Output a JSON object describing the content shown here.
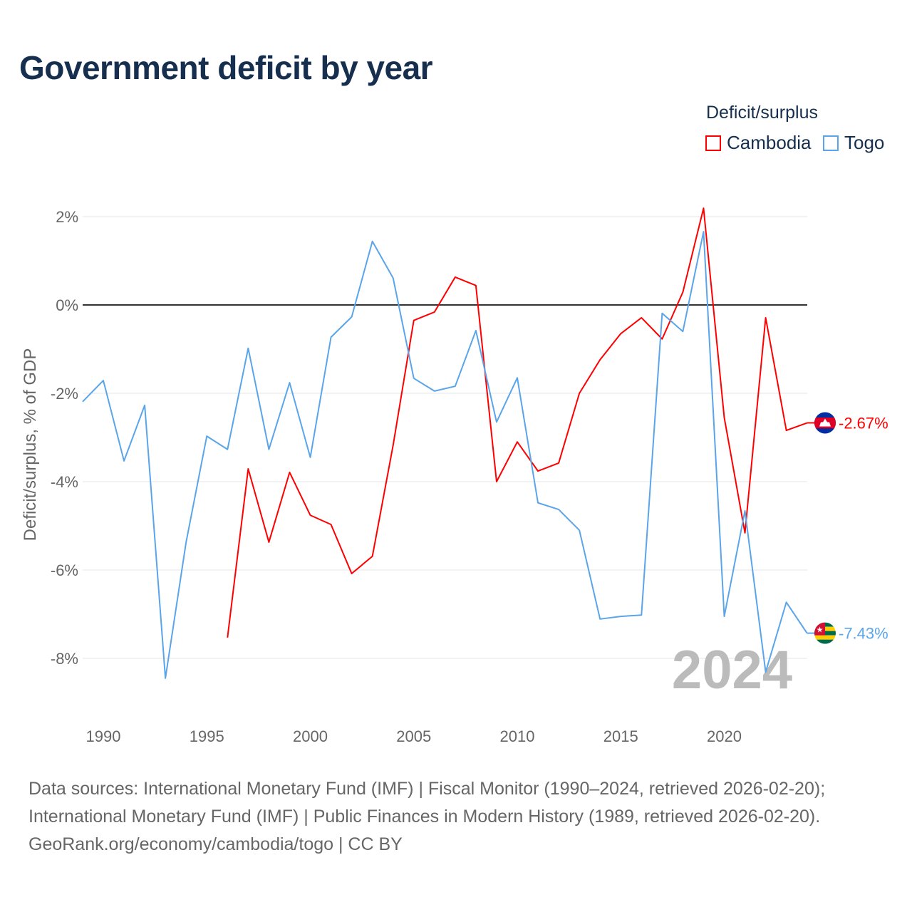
{
  "title": "Government deficit by year",
  "legend": {
    "title": "Deficit/surplus",
    "items": [
      {
        "label": "Cambodia",
        "color": "#ff0000"
      },
      {
        "label": "Togo",
        "color": "#5aa5ea"
      }
    ]
  },
  "footer": [
    "Data sources: International Monetary Fund (IMF) | Fiscal Monitor (1990–2024, retrieved 2026-02-20);",
    "International Monetary Fund (IMF) | Public Finances in Modern History (1989, retrieved 2026-02-20).",
    "GeoRank.org/economy/cambodia/togo | CC BY"
  ],
  "chart_data": {
    "type": "line",
    "title": "Government deficit by year",
    "ylabel": "Deficit/surplus, % of GDP",
    "xlabel": "",
    "xlim": [
      1989,
      2024
    ],
    "ylim": [
      -9.3,
      2.3
    ],
    "xticks": [
      1990,
      1995,
      2000,
      2005,
      2010,
      2015,
      2020
    ],
    "yticks": [
      2,
      0,
      -2,
      -4,
      -6,
      -8
    ],
    "ytick_labels": [
      "2%",
      "0%",
      "-2%",
      "-4%",
      "-6%",
      "-8%"
    ],
    "year_watermark": "2024",
    "series": [
      {
        "name": "Cambodia",
        "color": "#ff0000",
        "end_label": "-2.67%",
        "x": [
          1996,
          1997,
          1998,
          1999,
          2000,
          2001,
          2002,
          2003,
          2004,
          2005,
          2006,
          2007,
          2008,
          2009,
          2010,
          2011,
          2012,
          2013,
          2014,
          2015,
          2016,
          2017,
          2018,
          2019,
          2020,
          2021,
          2022,
          2023,
          2024
        ],
        "y": [
          -7.53,
          -3.71,
          -5.37,
          -3.79,
          -4.76,
          -4.97,
          -6.08,
          -5.69,
          -3.18,
          -0.35,
          -0.16,
          0.63,
          0.44,
          -4.0,
          -3.1,
          -3.76,
          -3.58,
          -2.0,
          -1.24,
          -0.65,
          -0.29,
          -0.77,
          0.29,
          2.19,
          -2.55,
          -5.16,
          -0.29,
          -2.84,
          -2.67
        ]
      },
      {
        "name": "Togo",
        "color": "#5aa5ea",
        "end_label": "-7.43%",
        "x": [
          1989,
          1990,
          1991,
          1992,
          1993,
          1994,
          1995,
          1996,
          1997,
          1998,
          1999,
          2000,
          2001,
          2002,
          2003,
          2004,
          2005,
          2006,
          2007,
          2008,
          2009,
          2010,
          2011,
          2012,
          2013,
          2014,
          2015,
          2016,
          2017,
          2018,
          2019,
          2020,
          2021,
          2022,
          2023,
          2024
        ],
        "y": [
          -2.19,
          -1.71,
          -3.53,
          -2.27,
          -8.45,
          -5.37,
          -2.97,
          -3.27,
          -0.98,
          -3.27,
          -1.76,
          -3.45,
          -0.73,
          -0.27,
          1.44,
          0.61,
          -1.66,
          -1.95,
          -1.84,
          -0.58,
          -2.65,
          -1.65,
          -4.48,
          -4.63,
          -5.1,
          -7.11,
          -7.05,
          -7.02,
          -0.19,
          -0.6,
          1.66,
          -7.05,
          -4.66,
          -8.31,
          -6.73,
          -7.43
        ]
      }
    ]
  }
}
